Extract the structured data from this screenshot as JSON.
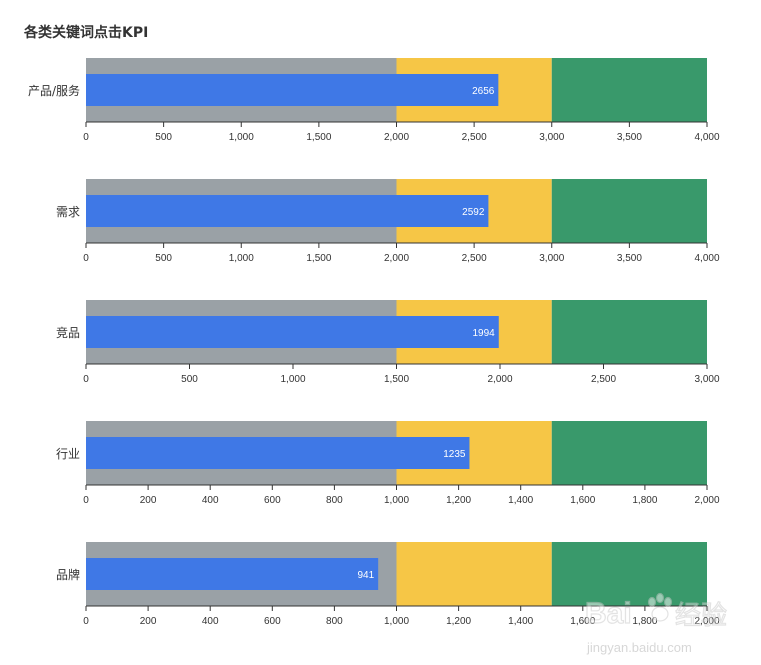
{
  "chart_data": {
    "type": "bullet",
    "title": "各类关键词点击KPI",
    "colors": {
      "range_low": "#9aa1a6",
      "range_mid": "#f6c646",
      "range_high": "#39996b",
      "measure": "#3f78e6",
      "axis": "#333333",
      "label": "#333333",
      "value_text": "#ffffff"
    },
    "rows": [
      {
        "category": "产品/服务",
        "value": 2656,
        "value_label": "2656",
        "ranges": [
          2000,
          3000,
          4000
        ],
        "xlim": [
          0,
          4000
        ],
        "ticks": [
          0,
          500,
          1000,
          1500,
          2000,
          2500,
          3000,
          3500,
          4000
        ],
        "tick_labels": [
          "0",
          "500",
          "1,000",
          "1,500",
          "2,000",
          "2,500",
          "3,000",
          "3,500",
          "4,000"
        ]
      },
      {
        "category": "需求",
        "value": 2592,
        "value_label": "2592",
        "ranges": [
          2000,
          3000,
          4000
        ],
        "xlim": [
          0,
          4000
        ],
        "ticks": [
          0,
          500,
          1000,
          1500,
          2000,
          2500,
          3000,
          3500,
          4000
        ],
        "tick_labels": [
          "0",
          "500",
          "1,000",
          "1,500",
          "2,000",
          "2,500",
          "3,000",
          "3,500",
          "4,000"
        ]
      },
      {
        "category": "竞品",
        "value": 1994,
        "value_label": "1994",
        "ranges": [
          1500,
          2250,
          3000
        ],
        "xlim": [
          0,
          3000
        ],
        "ticks": [
          0,
          500,
          1000,
          1500,
          2000,
          2500,
          3000
        ],
        "tick_labels": [
          "0",
          "500",
          "1,000",
          "1,500",
          "2,000",
          "2,500",
          "3,000"
        ]
      },
      {
        "category": "行业",
        "value": 1235,
        "value_label": "1235",
        "ranges": [
          1000,
          1500,
          2000
        ],
        "xlim": [
          0,
          2000
        ],
        "ticks": [
          0,
          200,
          400,
          600,
          800,
          1000,
          1200,
          1400,
          1600,
          1800,
          2000
        ],
        "tick_labels": [
          "0",
          "200",
          "400",
          "600",
          "800",
          "1,000",
          "1,200",
          "1,400",
          "1,600",
          "1,800",
          "2,000"
        ]
      },
      {
        "category": "品牌",
        "value": 941,
        "value_label": "941",
        "ranges": [
          1000,
          1500,
          2000
        ],
        "xlim": [
          0,
          2000
        ],
        "ticks": [
          0,
          200,
          400,
          600,
          800,
          1000,
          1200,
          1400,
          1600,
          1800,
          2000
        ],
        "tick_labels": [
          "0",
          "200",
          "400",
          "600",
          "800",
          "1,000",
          "1,200",
          "1,400",
          "1,600",
          "1,800",
          "2,000"
        ]
      }
    ]
  },
  "watermark": {
    "brand_text": "Bai",
    "brand_cn": "经验",
    "url_text": "jingyan.baidu.com"
  }
}
